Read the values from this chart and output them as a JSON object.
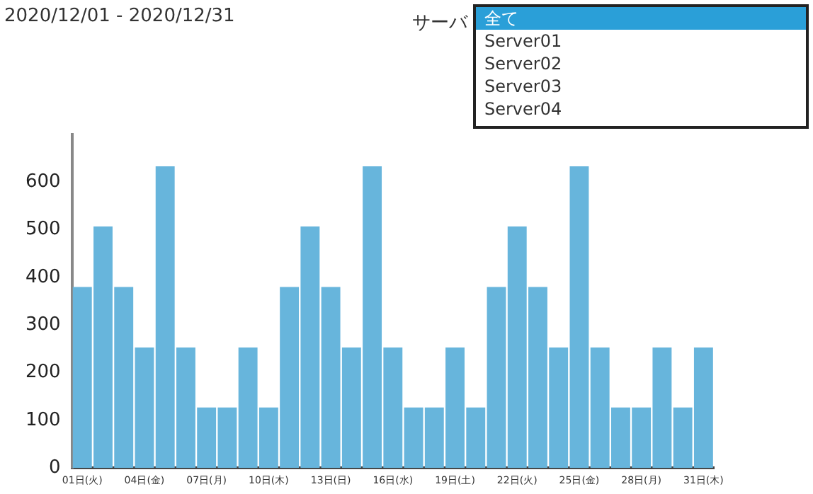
{
  "chart_data": {
    "type": "bar",
    "title": "2020/12/01 - 2020/12/31",
    "annotations": [
      "サーバ",
      "全て",
      "Server01",
      "Server02",
      "Server03",
      "Server04"
    ],
    "categories": [
      "01日(火)",
      null,
      null,
      "04日(金)",
      null,
      null,
      "07日(月)",
      null,
      null,
      "10日(木)",
      null,
      null,
      "13日(日)",
      null,
      null,
      "16日(水)",
      null,
      null,
      "19日(土)",
      null,
      null,
      "22日(火)",
      null,
      null,
      "25日(金)",
      null,
      null,
      "28日(月)",
      null,
      null,
      "31日(木)"
    ],
    "values": [
      380,
      507,
      380,
      253,
      633,
      253,
      127,
      127,
      253,
      127,
      380,
      507,
      380,
      253,
      633,
      253,
      127,
      127,
      253,
      127,
      380,
      507,
      380,
      253,
      633,
      253,
      127,
      127,
      253,
      127,
      253
    ],
    "color": "#67b5dc",
    "ylim": [
      0,
      700
    ],
    "yticks": [
      0,
      100,
      200,
      300,
      400,
      500,
      600
    ]
  }
}
